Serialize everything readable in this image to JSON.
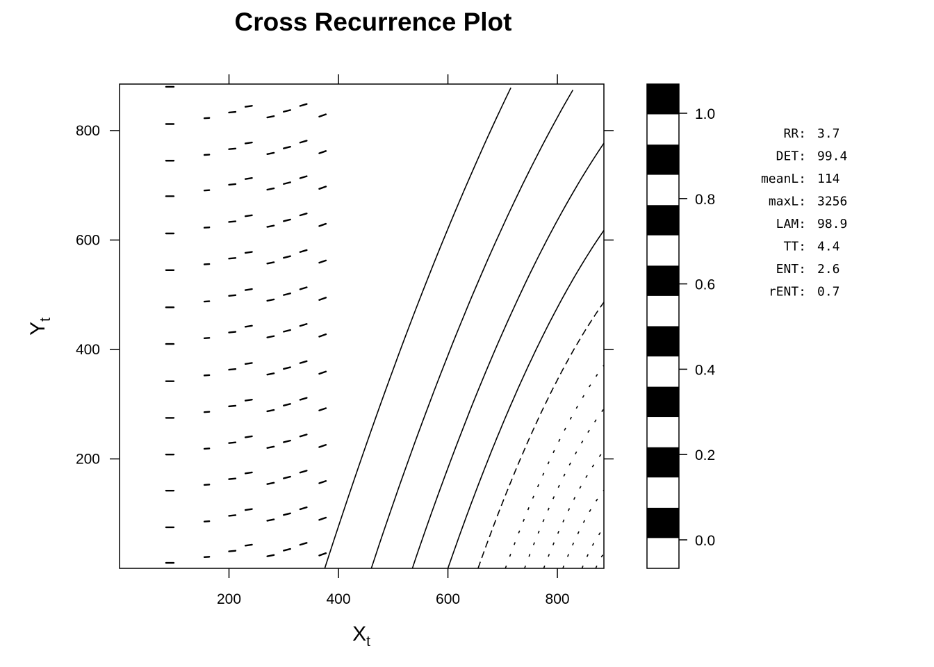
{
  "chart_data": {
    "type": "heatmap",
    "title": "Cross Recurrence Plot",
    "xlabel": {
      "main": "X",
      "sub": "t"
    },
    "ylabel": {
      "main": "Y",
      "sub": "t"
    },
    "xlim": [
      0,
      885
    ],
    "ylim": [
      0,
      885
    ],
    "x_ticks": [
      200,
      400,
      600,
      800
    ],
    "y_ticks": [
      200,
      400,
      600,
      800
    ],
    "x_tick_labels": [
      "200",
      "400",
      "600",
      "800"
    ],
    "y_tick_labels": [
      "200",
      "400",
      "600",
      "800"
    ],
    "colorkey": {
      "ticks": [
        0.0,
        0.2,
        0.4,
        0.6,
        0.8,
        1.0
      ],
      "tick_labels": [
        "0.0",
        "0.2",
        "0.4",
        "0.6",
        "0.8",
        "1.0"
      ],
      "colors": [
        "#ffffff",
        "#000000"
      ]
    },
    "recurrence": {
      "dash_rows_y": [
        10,
        75,
        142,
        208,
        275,
        342,
        410,
        477,
        545,
        612,
        680,
        745,
        812,
        880
      ],
      "dash_columns_x": [
        85,
        155,
        200,
        230,
        270,
        300,
        330,
        365
      ],
      "diagonal_line_starts_x": [
        375,
        460,
        535,
        600,
        655,
        705,
        740,
        775,
        810,
        845,
        870
      ],
      "grid": false
    },
    "stats": [
      {
        "label": "RR:",
        "value": "3.7"
      },
      {
        "label": "DET:",
        "value": "99.4"
      },
      {
        "label": "meanL:",
        "value": "114"
      },
      {
        "label": "maxL:",
        "value": "3256"
      },
      {
        "label": "LAM:",
        "value": "98.9"
      },
      {
        "label": "TT:",
        "value": "4.4"
      },
      {
        "label": "ENT:",
        "value": "2.6"
      },
      {
        "label": "rENT:",
        "value": "0.7"
      }
    ]
  }
}
